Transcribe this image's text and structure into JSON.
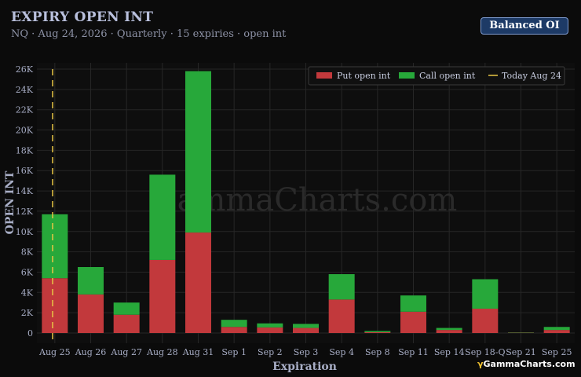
{
  "header": {
    "title": "EXPIRY OPEN INT",
    "subtitle": "NQ · Aug 24, 2026 · Quarterly · 15 expiries · open int",
    "balanced_button": "Balanced OI"
  },
  "watermark": "GammaCharts.com",
  "brand": {
    "mark": "γ",
    "name": "GammaCharts.com"
  },
  "colors": {
    "put": "#c2393c",
    "call": "#27a83a",
    "today": "#e8c544",
    "grid": "#262626"
  },
  "chart_data": {
    "type": "bar",
    "stacked": true,
    "categories": [
      "Aug 25",
      "Aug 26",
      "Aug 27",
      "Aug 28",
      "Aug 31",
      "Sep 1",
      "Sep 2",
      "Sep 3",
      "Sep 4",
      "Sep 8",
      "Sep 11",
      "Sep 14",
      "Sep 18-Q",
      "Sep 21",
      "Sep 25"
    ],
    "series": [
      {
        "name": "Put open int",
        "values": [
          5400,
          3800,
          1800,
          7200,
          9900,
          600,
          550,
          500,
          3300,
          80,
          2100,
          300,
          2400,
          30,
          300
        ]
      },
      {
        "name": "Call open int",
        "values": [
          6300,
          2700,
          1200,
          8400,
          15900,
          700,
          400,
          400,
          2500,
          120,
          1600,
          200,
          2900,
          30,
          300
        ]
      }
    ],
    "today_label": "Today Aug 24",
    "xlabel": "Expiration",
    "ylabel": "OPEN INT",
    "ylim": [
      -1000,
      26800
    ],
    "yticks": [
      0,
      2000,
      4000,
      6000,
      8000,
      10000,
      12000,
      14000,
      16000,
      18000,
      20000,
      22000,
      24000,
      26000
    ],
    "ytick_labels": [
      "0",
      "2K",
      "4K",
      "6K",
      "8K",
      "10K",
      "12K",
      "14K",
      "16K",
      "18K",
      "20K",
      "22K",
      "24K",
      "26K"
    ],
    "grid": true,
    "legend_position": "top-right"
  }
}
